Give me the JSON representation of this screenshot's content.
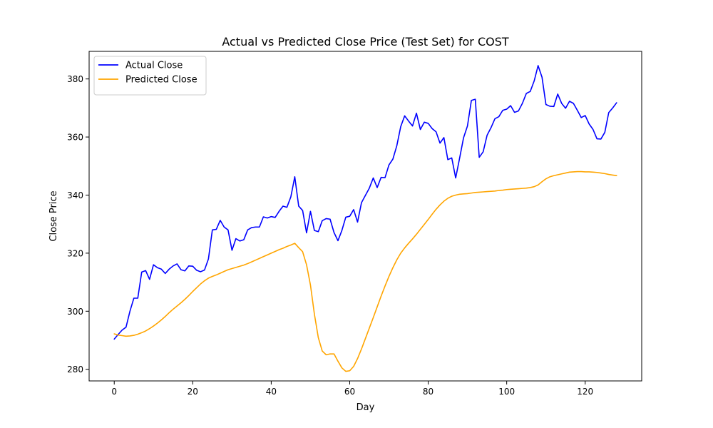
{
  "chart_data": {
    "type": "line",
    "title": "Actual vs Predicted Close Price (Test Set) for COST",
    "xlabel": "Day",
    "ylabel": "Close Price",
    "xlim": [
      -6.4,
      134.4
    ],
    "ylim": [
      276,
      389.5
    ],
    "xticks": [
      0,
      20,
      40,
      60,
      80,
      100,
      120
    ],
    "yticks": [
      280,
      300,
      320,
      340,
      360,
      380
    ],
    "grid": false,
    "legend_position": "top-left",
    "series": [
      {
        "name": "Actual Close",
        "color": "#0000ff",
        "values": [
          290.4,
          292.0,
          293.5,
          294.5,
          300.0,
          304.5,
          304.5,
          313.5,
          314.0,
          311.0,
          316.0,
          315.0,
          314.5,
          313.0,
          314.5,
          315.6,
          316.3,
          314.3,
          313.9,
          315.6,
          315.5,
          314.1,
          313.6,
          314.2,
          318.0,
          328.0,
          328.2,
          331.3,
          329.0,
          328.0,
          321.0,
          325.0,
          324.2,
          324.6,
          328.0,
          328.8,
          329.0,
          329.0,
          332.5,
          332.1,
          332.6,
          332.3,
          334.4,
          336.2,
          335.8,
          339.4,
          346.3,
          336.2,
          334.7,
          327.0,
          334.4,
          327.8,
          327.4,
          331.2,
          331.9,
          331.7,
          327.1,
          324.3,
          327.8,
          332.4,
          332.7,
          335.0,
          330.7,
          337.4,
          339.9,
          342.4,
          345.9,
          342.6,
          346.1,
          346.0,
          350.4,
          352.4,
          357.0,
          363.6,
          367.3,
          365.5,
          363.8,
          368.2,
          362.6,
          365.1,
          364.7,
          362.9,
          361.8,
          357.9,
          359.8,
          352.2,
          352.8,
          345.9,
          352.7,
          359.7,
          363.8,
          372.6,
          373.0,
          353.0,
          354.9,
          360.6,
          363.2,
          366.3,
          367.0,
          369.2,
          369.6,
          370.8,
          368.5,
          369.0,
          371.6,
          375.0,
          375.7,
          379.3,
          384.6,
          380.6,
          371.2,
          370.6,
          370.5,
          374.8,
          371.6,
          369.9,
          372.3,
          371.6,
          369.2,
          366.7,
          367.4,
          364.5,
          362.6,
          359.4,
          359.3,
          361.6,
          368.4,
          370.0,
          371.8
        ]
      },
      {
        "name": "Predicted Close",
        "color": "#ffa500",
        "values": [
          292.2,
          291.8,
          291.6,
          291.4,
          291.5,
          291.7,
          292.1,
          292.6,
          293.2,
          294.0,
          294.9,
          295.9,
          297.0,
          298.2,
          299.5,
          300.7,
          301.8,
          302.9,
          304.1,
          305.4,
          306.8,
          308.1,
          309.4,
          310.5,
          311.4,
          312.0,
          312.5,
          313.1,
          313.7,
          314.3,
          314.7,
          315.1,
          315.5,
          315.9,
          316.4,
          317.0,
          317.6,
          318.2,
          318.8,
          319.4,
          320.0,
          320.6,
          321.2,
          321.7,
          322.3,
          322.8,
          323.4,
          321.9,
          320.5,
          316.0,
          309.0,
          299.0,
          290.9,
          286.3,
          285.0,
          285.3,
          285.3,
          282.8,
          280.5,
          279.3,
          279.5,
          281.0,
          283.7,
          287.0,
          290.6,
          294.2,
          297.8,
          301.5,
          305.2,
          308.7,
          312.0,
          315.0,
          317.7,
          320.0,
          321.8,
          323.4,
          324.9,
          326.5,
          328.2,
          329.9,
          331.6,
          333.4,
          335.1,
          336.6,
          337.9,
          338.9,
          339.6,
          340.0,
          340.3,
          340.4,
          340.5,
          340.7,
          340.9,
          341.0,
          341.1,
          341.2,
          341.3,
          341.4,
          341.6,
          341.7,
          341.9,
          342.0,
          342.1,
          342.2,
          342.3,
          342.4,
          342.6,
          342.9,
          343.5,
          344.6,
          345.6,
          346.3,
          346.7,
          347.0,
          347.3,
          347.6,
          347.9,
          348.0,
          348.1,
          348.1,
          348.0,
          348.0,
          347.9,
          347.8,
          347.6,
          347.4,
          347.1,
          346.9,
          346.7
        ]
      }
    ]
  }
}
